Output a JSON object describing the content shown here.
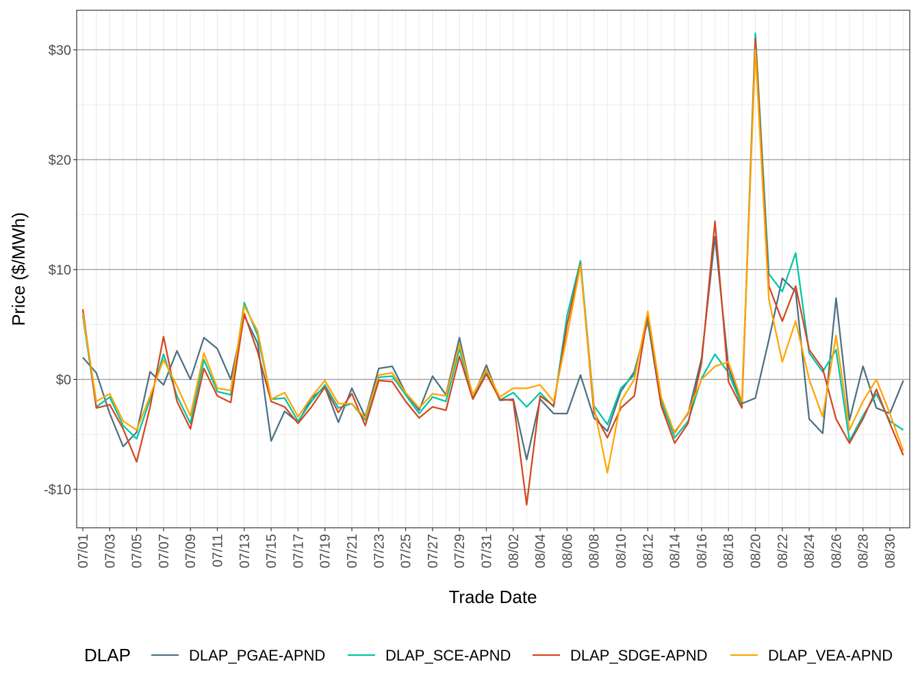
{
  "chart_data": {
    "type": "line",
    "xlabel": "Trade Date",
    "ylabel": "Price ($/MWh)",
    "ylim": [
      -13.5,
      33.6
    ],
    "yticks": [
      -10,
      0,
      10,
      20,
      30
    ],
    "ytick_labels": [
      "-$10",
      "$0",
      "$10",
      "$20",
      "$30"
    ],
    "grid": true,
    "legend_title": "DLAP",
    "legend_position": "bottom",
    "x": [
      "07/01",
      "07/02",
      "07/03",
      "07/04",
      "07/05",
      "07/06",
      "07/07",
      "07/08",
      "07/09",
      "07/10",
      "07/11",
      "07/12",
      "07/13",
      "07/14",
      "07/15",
      "07/16",
      "07/17",
      "07/18",
      "07/19",
      "07/20",
      "07/21",
      "07/22",
      "07/23",
      "07/24",
      "07/25",
      "07/26",
      "07/27",
      "07/28",
      "07/29",
      "07/30",
      "07/31",
      "08/01",
      "08/02",
      "08/03",
      "08/04",
      "08/05",
      "08/06",
      "08/07",
      "08/08",
      "08/09",
      "08/10",
      "08/11",
      "08/12",
      "08/13",
      "08/14",
      "08/15",
      "08/16",
      "08/17",
      "08/18",
      "08/19",
      "08/20",
      "08/21",
      "08/22",
      "08/23",
      "08/24",
      "08/25",
      "08/26",
      "08/27",
      "08/28",
      "08/29",
      "08/30",
      "08/31"
    ],
    "xtick_labels": [
      "07/01",
      "07/03",
      "07/05",
      "07/07",
      "07/09",
      "07/11",
      "07/13",
      "07/15",
      "07/17",
      "07/19",
      "07/21",
      "07/23",
      "07/25",
      "07/27",
      "07/29",
      "07/31",
      "08/02",
      "08/04",
      "08/06",
      "08/08",
      "08/10",
      "08/12",
      "08/14",
      "08/16",
      "08/18",
      "08/20",
      "08/22",
      "08/24",
      "08/26",
      "08/28",
      "08/30"
    ],
    "series": [
      {
        "name": "DLAP_PGAE-APND",
        "color": "#4d7084",
        "values": [
          2.0,
          0.6,
          -3.1,
          -6.1,
          -4.8,
          0.7,
          -0.5,
          2.6,
          0,
          3.8,
          2.8,
          0,
          5.8,
          3.3,
          -5.6,
          -2.9,
          -3.9,
          -1.7,
          -0.7,
          -3.9,
          -0.8,
          -3.4,
          1.0,
          1.2,
          -1.2,
          -2.8,
          0.3,
          -1.4,
          3.8,
          -1.7,
          1.3,
          -1.9,
          -1.8,
          -7.3,
          -1.8,
          -3.1,
          -3.1,
          0.4,
          -3.5,
          -4.7,
          -1.1,
          0.7,
          5.3,
          -2.4,
          -4.8,
          -3.1,
          1.9,
          13.0,
          1.1,
          -2.2,
          -1.7,
          3.6,
          9.2,
          8.0,
          -3.6,
          -4.9,
          7.4,
          -3.7,
          1.2,
          -2.6,
          -3.1,
          -0.1
        ]
      },
      {
        "name": "DLAP_SCE-APND",
        "color": "#00c4aa",
        "values": [
          5.8,
          -2.5,
          -1.6,
          -4.2,
          -5.4,
          -1.8,
          2.3,
          -1.5,
          -4.0,
          1.8,
          -1.1,
          -1.4,
          7.0,
          4.0,
          -1.8,
          -1.7,
          -3.8,
          -2.0,
          -0.5,
          -2.6,
          -2.2,
          -3.7,
          0.2,
          0.3,
          -1.4,
          -3.1,
          -1.6,
          -2.0,
          2.8,
          -1.6,
          0.8,
          -1.9,
          -1.2,
          -2.5,
          -1.2,
          -2.5,
          5.8,
          10.8,
          -2.4,
          -4.1,
          -0.8,
          0.4,
          5.5,
          -2.0,
          -5.3,
          -3.8,
          0.1,
          2.3,
          0.6,
          -2.4,
          31.5,
          9.6,
          8.0,
          11.5,
          2.4,
          0.7,
          2.7,
          -5.6,
          -3.3,
          -1.3,
          -3.8,
          -4.6
        ]
      },
      {
        "name": "DLAP_SDGE-APND",
        "color": "#d2481f",
        "values": [
          6.4,
          -2.6,
          -2.3,
          -4.5,
          -7.5,
          -2.5,
          3.9,
          -2.0,
          -4.5,
          1.0,
          -1.5,
          -2.1,
          6.0,
          2.5,
          -2.0,
          -2.5,
          -4.0,
          -2.5,
          -0.7,
          -3.0,
          -1.3,
          -4.2,
          -0.1,
          -0.2,
          -2.0,
          -3.5,
          -2.5,
          -2.8,
          2.1,
          -1.8,
          0.5,
          -1.8,
          -1.9,
          -11.4,
          -1.5,
          -2.4,
          5.0,
          10.5,
          -3.0,
          -5.3,
          -2.6,
          -1.5,
          5.9,
          -2.4,
          -5.8,
          -4.0,
          1.5,
          14.4,
          -0.2,
          -2.6,
          31.0,
          8.5,
          5.3,
          8.5,
          2.7,
          1.0,
          -3.6,
          -5.8,
          -3.6,
          -0.9,
          -4.0,
          -6.9
        ]
      },
      {
        "name": "DLAP_VEA-APND",
        "color": "#ffa500",
        "values": [
          6.0,
          -2.0,
          -1.3,
          -3.8,
          -4.6,
          -1.5,
          1.8,
          -0.6,
          -3.3,
          2.4,
          -0.8,
          -1.0,
          6.7,
          4.4,
          -1.8,
          -1.2,
          -3.4,
          -1.6,
          -0.1,
          -2.2,
          -2.2,
          -3.5,
          0.4,
          0.6,
          -1.2,
          -2.6,
          -1.3,
          -1.5,
          3.2,
          -1.4,
          0.9,
          -1.6,
          -0.8,
          -0.8,
          -0.5,
          -2.0,
          4.0,
          10.4,
          -2.5,
          -8.5,
          -2.0,
          0.0,
          6.2,
          -1.6,
          -4.9,
          -3.0,
          0.0,
          1.2,
          1.6,
          -2.0,
          30.0,
          7.3,
          1.6,
          5.3,
          0.0,
          -3.4,
          4.0,
          -4.6,
          -2.0,
          0.0,
          -3.1,
          -6.5
        ]
      }
    ]
  }
}
